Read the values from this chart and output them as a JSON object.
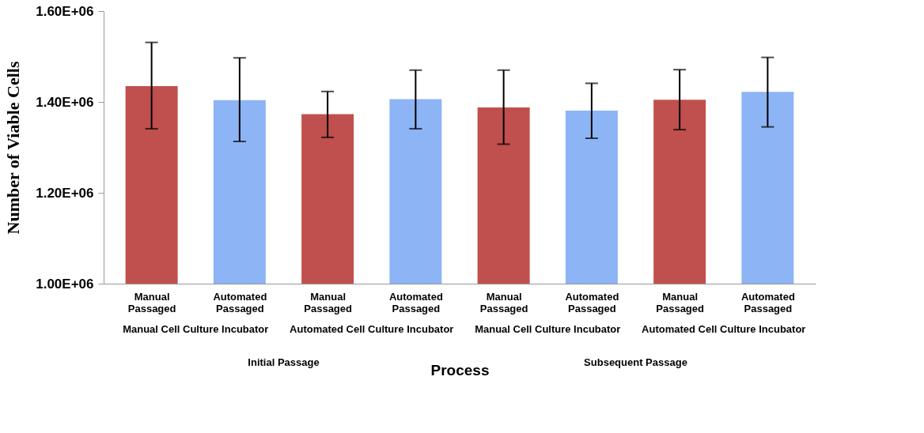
{
  "chart_data": {
    "type": "bar",
    "xlabel": "Process",
    "ylabel": "Number of Viable Cells",
    "categories": [
      "Manual Passaged",
      "Automated Passaged",
      "Manual Passaged",
      "Automated Passaged",
      "Manual Passaged",
      "Automated Passaged",
      "Manual Passaged",
      "Automated Passaged"
    ],
    "values": [
      1435000,
      1404000,
      1373000,
      1406000,
      1388000,
      1381000,
      1405000,
      1422000
    ],
    "colors": [
      "#c0504d",
      "#8db4f4",
      "#c0504d",
      "#8db4f4",
      "#c0504d",
      "#8db4f4",
      "#c0504d",
      "#8db4f4"
    ],
    "errors": [
      [
        1341000,
        1531000
      ],
      [
        1313000,
        1497000
      ],
      [
        1322000,
        1423000
      ],
      [
        1341000,
        1470000
      ],
      [
        1307000,
        1470000
      ],
      [
        1320000,
        1441000
      ],
      [
        1339000,
        1471000
      ],
      [
        1345000,
        1498000
      ]
    ],
    "ylim": [
      1000000,
      1600000
    ],
    "yticks": [
      {
        "value": 1000000,
        "label": "1.00E+06"
      },
      {
        "value": 1200000,
        "label": "1.20E+06"
      },
      {
        "value": 1400000,
        "label": "1.40E+06"
      },
      {
        "value": 1600000,
        "label": "1.60E+06"
      }
    ],
    "annotations": [
      "Manual Cell Culture Incubator",
      "Automated Cell Culture Incubator",
      "Manual Cell Culture Incubator",
      "Automated Cell Culture Incubator",
      "Initial Passage",
      "Subsequent Passage"
    ],
    "grid": false
  }
}
